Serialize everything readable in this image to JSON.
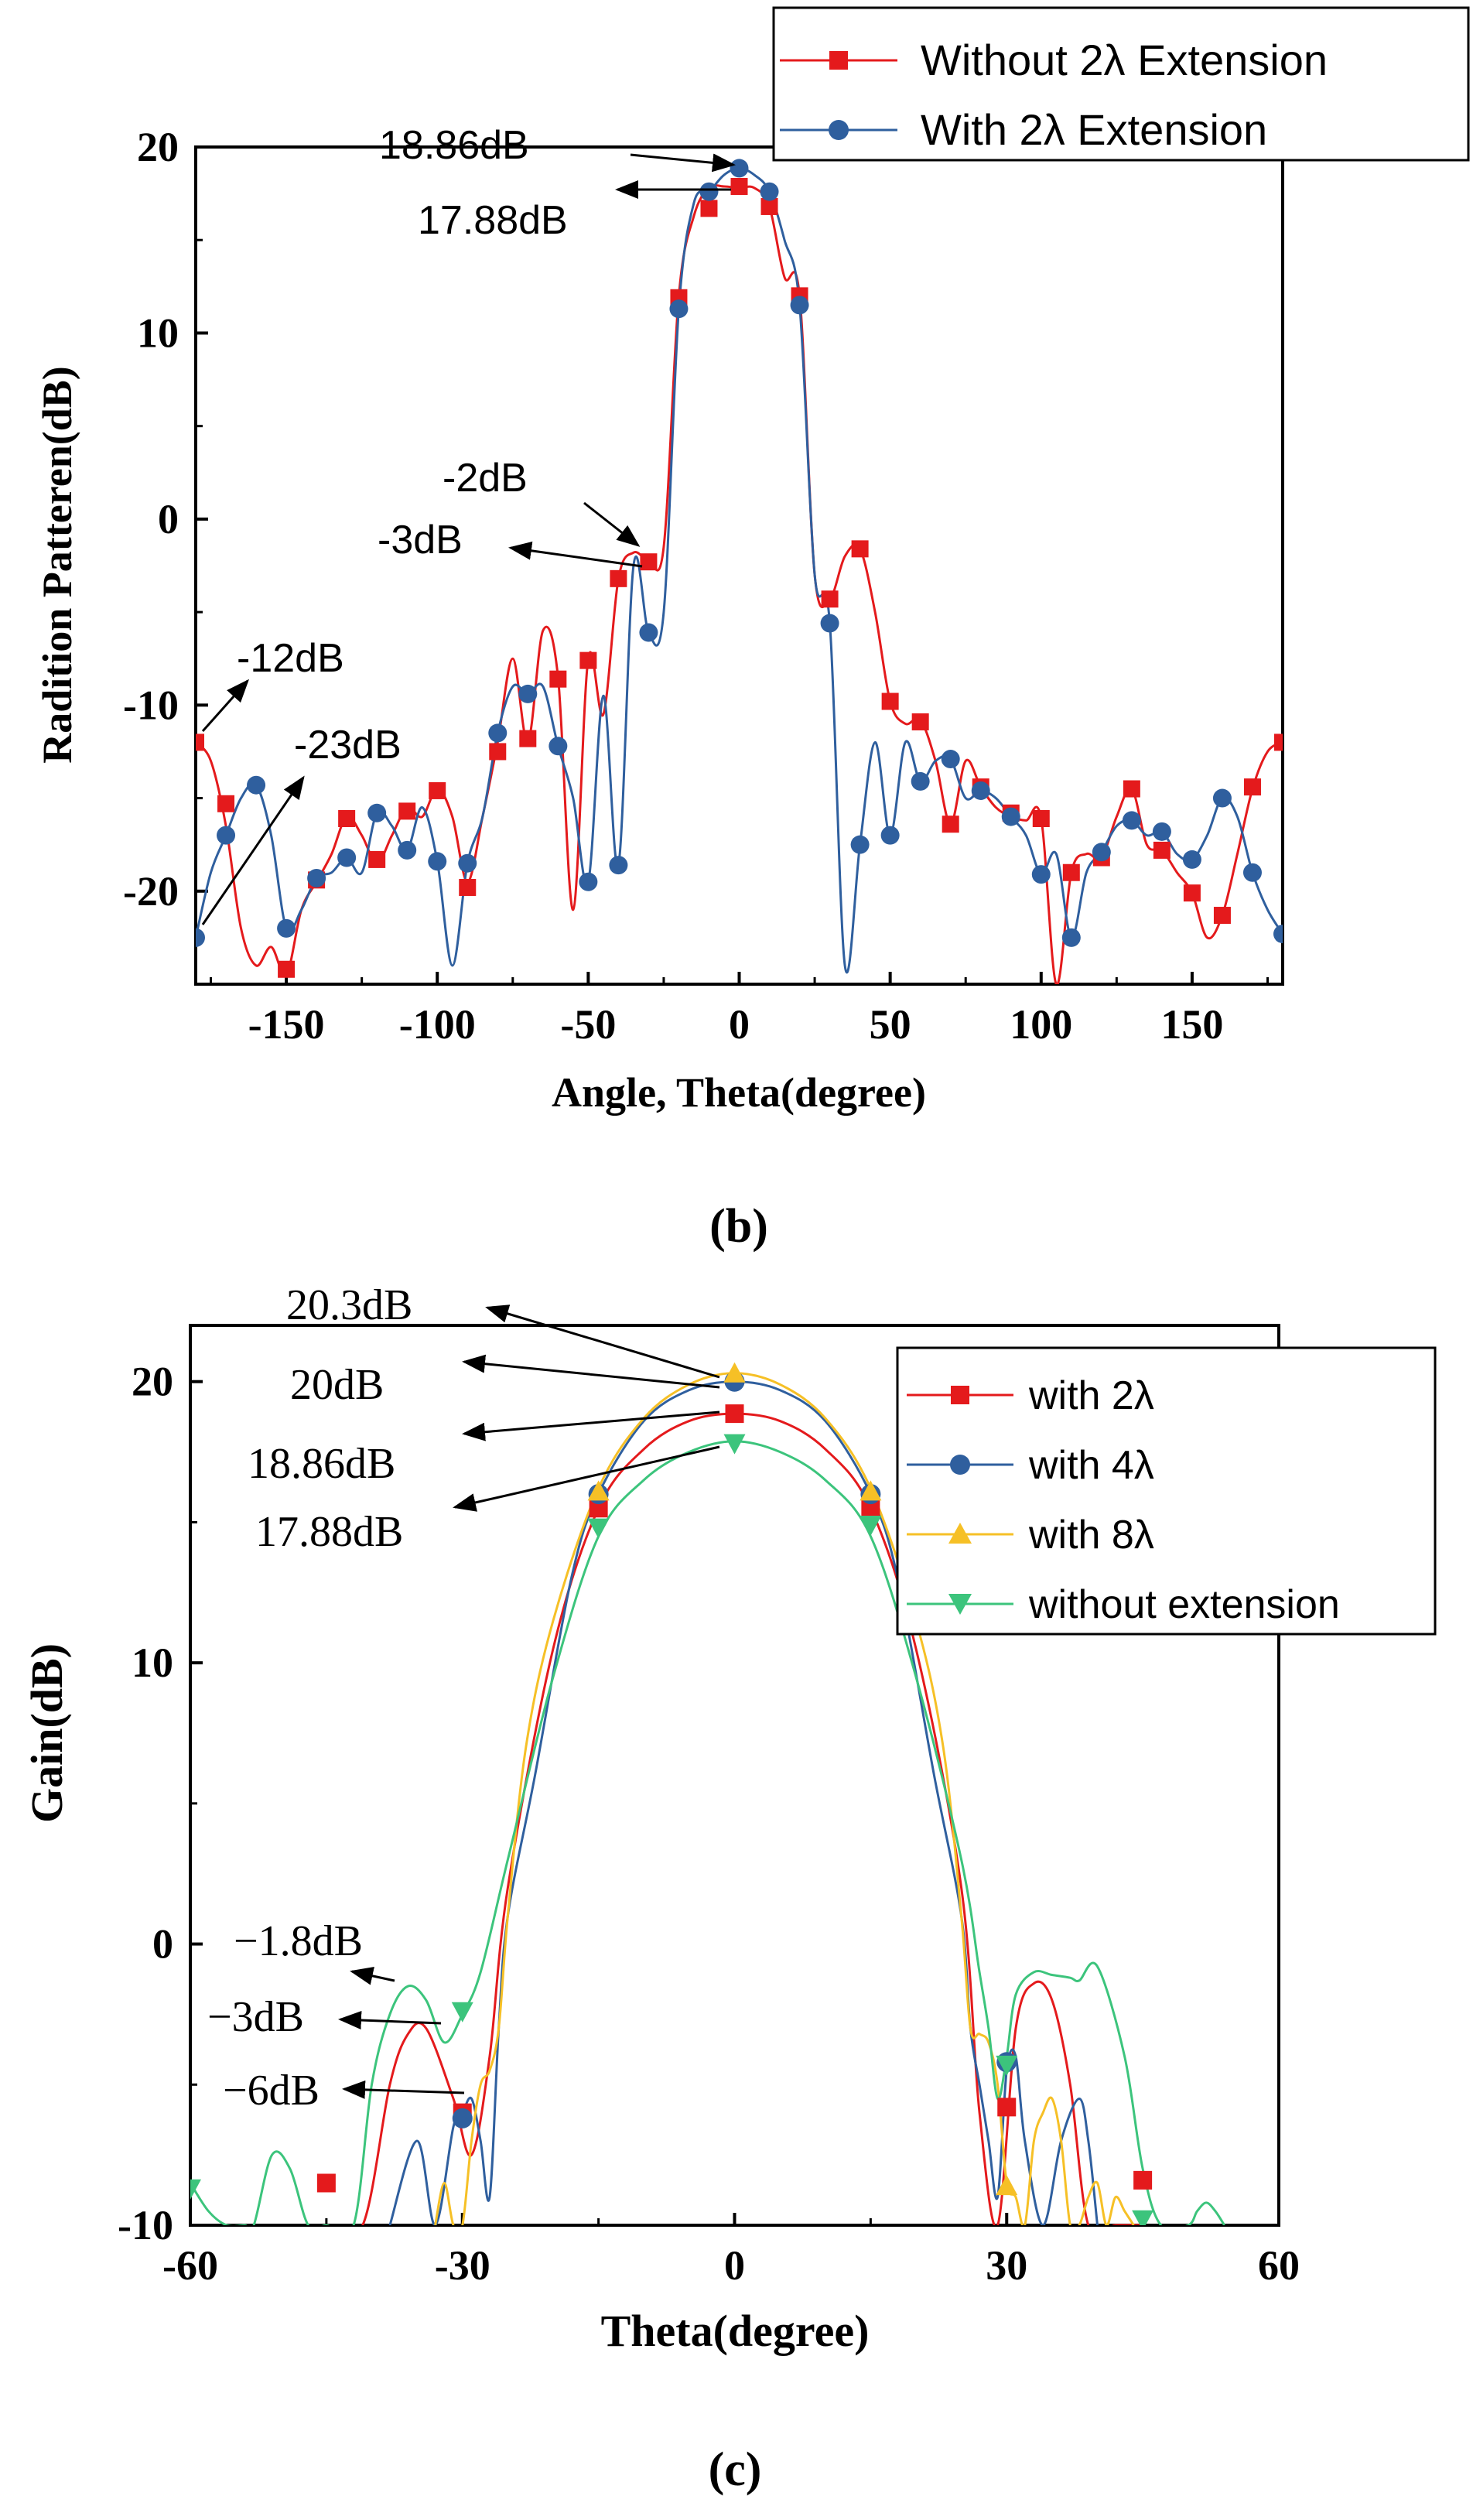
{
  "chart_data": [
    {
      "type": "line",
      "panel_label": "(b)",
      "xlabel": "Angle, Theta(degree)",
      "ylabel": "Radition Patteren(dB)",
      "xlim": [
        -180,
        180
      ],
      "ylim": [
        -25,
        20
      ],
      "xticks": [
        "-150",
        "-100",
        "-50",
        "0",
        "50",
        "100",
        "150"
      ],
      "yticks": [
        "-20",
        "-10",
        "0",
        "10",
        "20"
      ],
      "legend_position": "top-right",
      "series": [
        {
          "name": "Without 2λ  Extension",
          "color": "#e41a1c",
          "marker": "square",
          "x": [
            -180,
            -175,
            -170,
            -165,
            -160,
            -155,
            -150,
            -145,
            -140,
            -135,
            -130,
            -125,
            -120,
            -115,
            -110,
            -105,
            -100,
            -95,
            -90,
            -85,
            -80,
            -75,
            -70,
            -65,
            -60,
            -55,
            -50,
            -45,
            -40,
            -35,
            -30,
            -25,
            -20,
            -15,
            -10,
            -5,
            0,
            5,
            10,
            15,
            20,
            25,
            30,
            35,
            40,
            45,
            50,
            55,
            60,
            65,
            70,
            75,
            80,
            85,
            90,
            95,
            100,
            105,
            110,
            115,
            120,
            125,
            130,
            135,
            140,
            145,
            150,
            155,
            160,
            165,
            170,
            175,
            180
          ],
          "y": [
            -12,
            -13,
            -16.5,
            -22,
            -24,
            -23,
            -24.5,
            -21,
            -19.5,
            -18,
            -16,
            -17,
            -18.5,
            -17,
            -15.5,
            -16,
            -14.5,
            -16,
            -19.5,
            -16,
            -12,
            -7.5,
            -12,
            -6,
            -8.5,
            -21,
            -7.5,
            -10.5,
            -3.2,
            -1.8,
            -2.2,
            -1.5,
            12,
            16.3,
            17.8,
            17.88,
            17.8,
            17.8,
            16.8,
            13,
            12,
            -3,
            -4.3,
            -2,
            -1.6,
            -5,
            -9.8,
            -11,
            -10.8,
            -13,
            -16.4,
            -13,
            -14.4,
            -15.5,
            -16,
            -16.2,
            -16.1,
            -25,
            -19,
            -18,
            -18.2,
            -16,
            -14.5,
            -17.5,
            -17.8,
            -19,
            -20.1,
            -22.5,
            -21.3,
            -18,
            -14.5,
            -12.5,
            -12
          ],
          "marker_points": {
            "x": [
              -180,
              -170,
              -150,
              -140,
              -130,
              -120,
              -110,
              -100,
              -90,
              -80,
              -70,
              -60,
              -50,
              -40,
              -30,
              -20,
              -10,
              0,
              10,
              20,
              30,
              40,
              50,
              60,
              70,
              80,
              90,
              100,
              110,
              120,
              130,
              140,
              150,
              160,
              170,
              180
            ],
            "y": [
              -12,
              -15.3,
              -24.2,
              -19.4,
              -16.1,
              -18.3,
              -15.7,
              -14.6,
              -19.8,
              -12.5,
              -11.8,
              -8.6,
              -7.6,
              -3.2,
              -2.3,
              11.9,
              16.7,
              17.88,
              16.8,
              12,
              -4.3,
              -1.6,
              -9.8,
              -10.9,
              -16.4,
              -14.4,
              -15.8,
              -16.1,
              -19,
              -18.2,
              -14.5,
              -17.8,
              -20.1,
              -21.3,
              -14.4,
              -12
            ]
          }
        },
        {
          "name": "With 2λ Extension",
          "color": "#2f5f9e",
          "marker": "circle",
          "x": [
            -180,
            -175,
            -170,
            -165,
            -160,
            -155,
            -150,
            -145,
            -140,
            -135,
            -130,
            -125,
            -120,
            -115,
            -110,
            -105,
            -100,
            -95,
            -90,
            -85,
            -80,
            -75,
            -70,
            -65,
            -60,
            -55,
            -50,
            -45,
            -40,
            -35,
            -30,
            -25,
            -20,
            -15,
            -10,
            -5,
            0,
            5,
            10,
            15,
            20,
            25,
            30,
            35,
            40,
            45,
            50,
            55,
            60,
            65,
            70,
            75,
            80,
            85,
            90,
            95,
            100,
            105,
            110,
            115,
            120,
            125,
            130,
            135,
            140,
            145,
            150,
            155,
            160,
            165,
            170,
            175,
            180
          ],
          "y": [
            -22.5,
            -19,
            -17,
            -15,
            -14.3,
            -17,
            -22,
            -21,
            -19.3,
            -19,
            -18.2,
            -19,
            -15.8,
            -16.5,
            -17.8,
            -15.5,
            -18.4,
            -24,
            -18.5,
            -16,
            -11.5,
            -9,
            -9.4,
            -9,
            -12.2,
            -15,
            -19.5,
            -9.5,
            -18.6,
            -2.5,
            -6.1,
            -5,
            11.3,
            17,
            17.6,
            18.5,
            18.86,
            18.5,
            17.6,
            15,
            11.5,
            -3,
            -5.6,
            -24,
            -17.5,
            -12,
            -17,
            -12,
            -14.1,
            -13,
            -12.9,
            -15,
            -14.6,
            -15,
            -16,
            -17,
            -19.1,
            -18,
            -22.5,
            -19,
            -17.9,
            -16.5,
            -16.2,
            -17,
            -16.8,
            -18,
            -18.3,
            -17,
            -15,
            -16,
            -19,
            -21,
            -22.3
          ],
          "marker_points": {
            "x": [
              -180,
              -170,
              -160,
              -150,
              -140,
              -130,
              -120,
              -110,
              -100,
              -90,
              -80,
              -70,
              -60,
              -50,
              -40,
              -30,
              -20,
              -10,
              0,
              10,
              20,
              30,
              40,
              50,
              60,
              70,
              80,
              90,
              100,
              110,
              120,
              130,
              140,
              150,
              160,
              170,
              180
            ],
            "y": [
              -22.5,
              -17,
              -14.3,
              -22,
              -19.3,
              -18.2,
              -15.8,
              -17.8,
              -18.4,
              -18.5,
              -11.5,
              -9.4,
              -12.2,
              -19.5,
              -18.6,
              -6.1,
              11.3,
              17.6,
              18.86,
              17.6,
              11.5,
              -5.6,
              -17.5,
              -17,
              -14.1,
              -12.9,
              -14.6,
              -16,
              -19.1,
              -22.5,
              -17.9,
              -16.2,
              -16.8,
              -18.3,
              -15,
              -19,
              -22.3
            ]
          }
        }
      ],
      "annotations": [
        "18.86dB",
        "17.88dB",
        "-2dB",
        "-3dB",
        "-12dB",
        "-23dB"
      ]
    },
    {
      "type": "line",
      "panel_label": "(c)",
      "xlabel": "Theta(degree)",
      "ylabel": "Gain(dB)",
      "xlim": [
        -60,
        60
      ],
      "ylim": [
        -10,
        22
      ],
      "xticks": [
        "-60",
        "-30",
        "0",
        "30",
        "60"
      ],
      "yticks": [
        "-10",
        "0",
        "10",
        "20"
      ],
      "legend_position": "top-right",
      "series": [
        {
          "name": "with 2λ",
          "color": "#e41a1c",
          "marker": "square",
          "x": [
            -45,
            -41,
            -38,
            -36,
            -34,
            -31,
            -29,
            -27,
            -25,
            -20,
            -15,
            -10,
            -5,
            0,
            5,
            10,
            15,
            20,
            25,
            27,
            29,
            31,
            33,
            35,
            37,
            39,
            42,
            45
          ],
          "y": [
            -10,
            -10,
            -5,
            -3.2,
            -3,
            -5.5,
            -7.5,
            -4,
            2,
            10.5,
            15.5,
            17.6,
            18.6,
            18.86,
            18.6,
            17.6,
            15.5,
            10.5,
            2,
            -6,
            -10,
            -3,
            -1.4,
            -2,
            -5,
            -10,
            -10,
            -10
          ],
          "marker_points": {
            "x": [
              -45,
              -30,
              -15,
              0,
              15,
              30,
              45
            ],
            "y": [
              -8.5,
              -6,
              15.5,
              18.86,
              15.5,
              -5.8,
              -8.4
            ]
          }
        },
        {
          "name": "with 4λ",
          "color": "#2f5f9e",
          "marker": "circle",
          "x": [
            -38,
            -35,
            -33,
            -31,
            -30,
            -29,
            -28,
            -27,
            -26,
            -25,
            -22,
            -18,
            -15,
            -10,
            -5,
            0,
            5,
            10,
            15,
            18,
            22,
            25,
            26,
            27,
            28,
            29,
            30,
            31,
            32,
            34,
            36,
            38,
            39,
            40
          ],
          "y": [
            -10,
            -7,
            -10,
            -6.5,
            -6,
            -5.5,
            -7,
            -9,
            -3,
            1,
            6,
            13,
            16,
            18.6,
            19.7,
            20,
            19.7,
            18.6,
            16,
            13,
            6,
            1,
            -3,
            -5,
            -7,
            -9,
            -4.5,
            -4,
            -7,
            -10,
            -7,
            -5.5,
            -7,
            -10
          ],
          "marker_points": {
            "x": [
              -30,
              -15,
              0,
              15,
              30
            ],
            "y": [
              -6.2,
              16,
              20,
              16,
              -4.2
            ]
          }
        },
        {
          "name": "with 8λ",
          "color": "#f6c026",
          "marker": "triangle-up",
          "x": [
            -33,
            -32,
            -31,
            -30,
            -29,
            -28,
            -27,
            -26,
            -25,
            -23,
            -20,
            -15,
            -10,
            -5,
            0,
            5,
            10,
            15,
            20,
            23,
            25,
            26,
            27,
            28,
            29,
            30,
            31,
            32,
            33,
            34,
            35,
            36,
            37,
            38,
            39,
            40,
            41,
            42,
            43,
            44
          ],
          "y": [
            -10,
            -8.5,
            -10,
            -10,
            -7,
            -5,
            -4.5,
            -3,
            1,
            7,
            11.5,
            16.2,
            18.7,
            19.9,
            20.3,
            19.9,
            18.7,
            16.2,
            11.5,
            7,
            1,
            -3,
            -3.2,
            -3.5,
            -5,
            -8.5,
            -9,
            -10,
            -7,
            -6,
            -5.5,
            -7,
            -10,
            -10,
            -9,
            -8.5,
            -10,
            -9,
            -9.5,
            -10
          ],
          "marker_points": {
            "x": [
              -15,
              0,
              15,
              30
            ],
            "y": [
              16.1,
              20.3,
              16.1,
              -8.6
            ]
          }
        },
        {
          "name": "without extension",
          "color": "#3cc47c",
          "marker": "triangle-down",
          "x": [
            -60,
            -58,
            -56,
            -54,
            -53,
            -51,
            -49,
            -47,
            -45,
            -42,
            -40,
            -38,
            -36,
            -34,
            -32,
            -30,
            -28,
            -25,
            -20,
            -15,
            -10,
            -5,
            0,
            5,
            10,
            15,
            20,
            25,
            27,
            28,
            29,
            30,
            31,
            33,
            35,
            37,
            38,
            40,
            43,
            45,
            47,
            50,
            51,
            52,
            53,
            54
          ],
          "y": [
            -8.5,
            -9.5,
            -10,
            -10,
            -10,
            -7.5,
            -8,
            -10,
            -10,
            -10,
            -5,
            -2.5,
            -1.5,
            -2,
            -3.5,
            -2.5,
            -1,
            3,
            9.5,
            14.5,
            16.5,
            17.5,
            17.88,
            17.5,
            16.5,
            14.5,
            9.5,
            3,
            -1,
            -3,
            -5.5,
            -4,
            -1.8,
            -1,
            -1.1,
            -1.2,
            -1.3,
            -0.8,
            -4,
            -8,
            -10,
            -10,
            -9.5,
            -9.2,
            -9.5,
            -10
          ],
          "marker_points": {
            "x": [
              -60,
              -30,
              -15,
              0,
              15,
              30,
              45
            ],
            "y": [
              -8.7,
              -2.4,
              14.8,
              17.8,
              14.9,
              -4.3,
              -9.8
            ]
          }
        }
      ],
      "annotations": [
        "20.3dB",
        "20dB",
        "18.86dB",
        "17.88dB",
        "−1.8dB",
        "−3dB",
        "−6dB"
      ]
    }
  ]
}
